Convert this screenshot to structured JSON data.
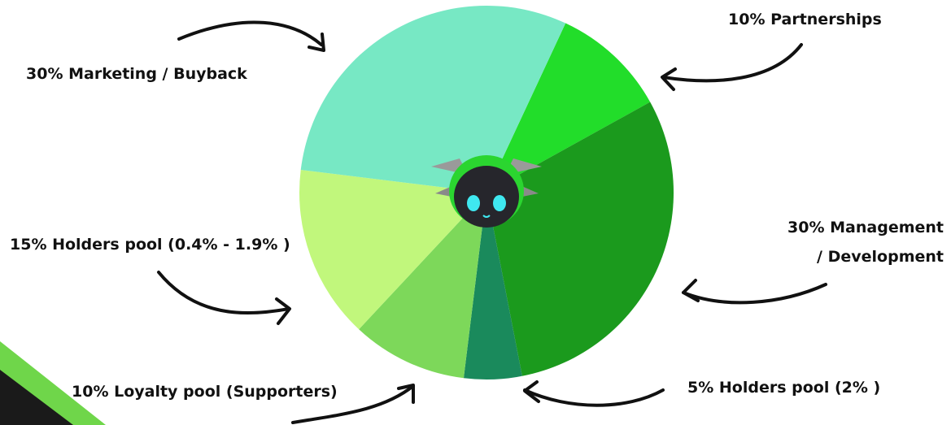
{
  "chart_data": {
    "type": "pie",
    "categories": [
      "10% Partnerships",
      "30% Management / Development",
      "5% Holders pool (2% )",
      "10% Loyalty pool (Supporters)",
      "15% Holders pool (0.4% - 1.9% )",
      "30% Marketing / Buyback"
    ],
    "values": [
      10,
      30,
      5,
      10,
      15,
      30
    ],
    "colors": [
      "#22dd2a",
      "#1b9a1d",
      "#1a8a5c",
      "#7dd85a",
      "#c1f77c",
      "#77e8c4"
    ]
  }
}
